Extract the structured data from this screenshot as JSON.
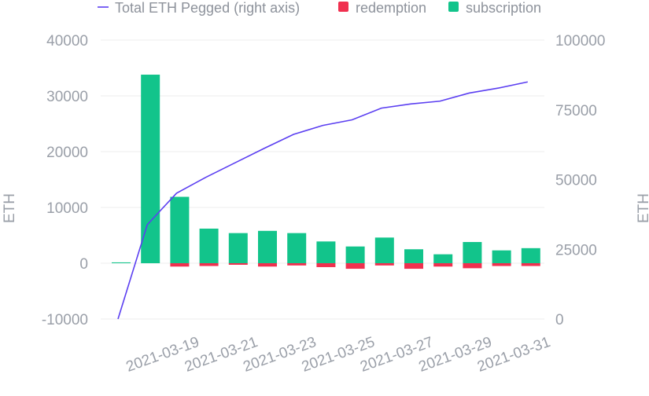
{
  "chart_data": {
    "type": "bar",
    "legend": {
      "placement": "top",
      "items": [
        {
          "label": "Total ETH Pegged (right axis)",
          "symbol": "line",
          "color": "#5b3ff1"
        },
        {
          "label": "redemption",
          "symbol": "square",
          "color": "#f0304f"
        },
        {
          "label": "subscription",
          "symbol": "square",
          "color": "#12c48b"
        }
      ]
    },
    "ylabel_left": "ETH",
    "ylabel_right": "ETH",
    "ylim_left": [
      -10000,
      40000
    ],
    "ylim_right": [
      0,
      100000
    ],
    "yticks_left": [
      "-10000",
      "0",
      "10000",
      "20000",
      "30000",
      "40000"
    ],
    "yticks_left_values": [
      -10000,
      0,
      10000,
      20000,
      30000,
      40000
    ],
    "yticks_right": [
      "0",
      "25000",
      "50000",
      "75000",
      "100000"
    ],
    "yticks_right_values": [
      0,
      25000,
      50000,
      75000,
      100000
    ],
    "grid": true,
    "x": [
      "2021-03-17",
      "2021-03-18",
      "2021-03-19",
      "2021-03-20",
      "2021-03-21",
      "2021-03-22",
      "2021-03-23",
      "2021-03-24",
      "2021-03-25",
      "2021-03-26",
      "2021-03-27",
      "2021-03-28",
      "2021-03-29",
      "2021-03-30",
      "2021-03-31"
    ],
    "xticks": [
      "2021-03-19",
      "2021-03-21",
      "2021-03-23",
      "2021-03-25",
      "2021-03-27",
      "2021-03-29",
      "2021-03-31"
    ],
    "series": [
      {
        "name": "subscription",
        "type": "bar",
        "axis": "left",
        "color": "#12c48b",
        "values": [
          150,
          33800,
          11900,
          6200,
          5400,
          5800,
          5400,
          3900,
          3000,
          4600,
          2500,
          1600,
          3800,
          2300,
          2700
        ]
      },
      {
        "name": "redemption",
        "type": "bar",
        "axis": "left",
        "color": "#f0304f",
        "values": [
          0,
          0,
          -600,
          -500,
          -200,
          -600,
          -400,
          -700,
          -1000,
          -400,
          -1000,
          -600,
          -900,
          -500,
          -500
        ]
      },
      {
        "name": "Total ETH Pegged (right axis)",
        "type": "line",
        "axis": "right",
        "color": "#5b3ff1",
        "values": [
          0,
          33800,
          45100,
          50800,
          56000,
          61200,
          66200,
          69400,
          71400,
          75600,
          77100,
          78100,
          81000,
          82800,
          85000
        ]
      }
    ]
  }
}
